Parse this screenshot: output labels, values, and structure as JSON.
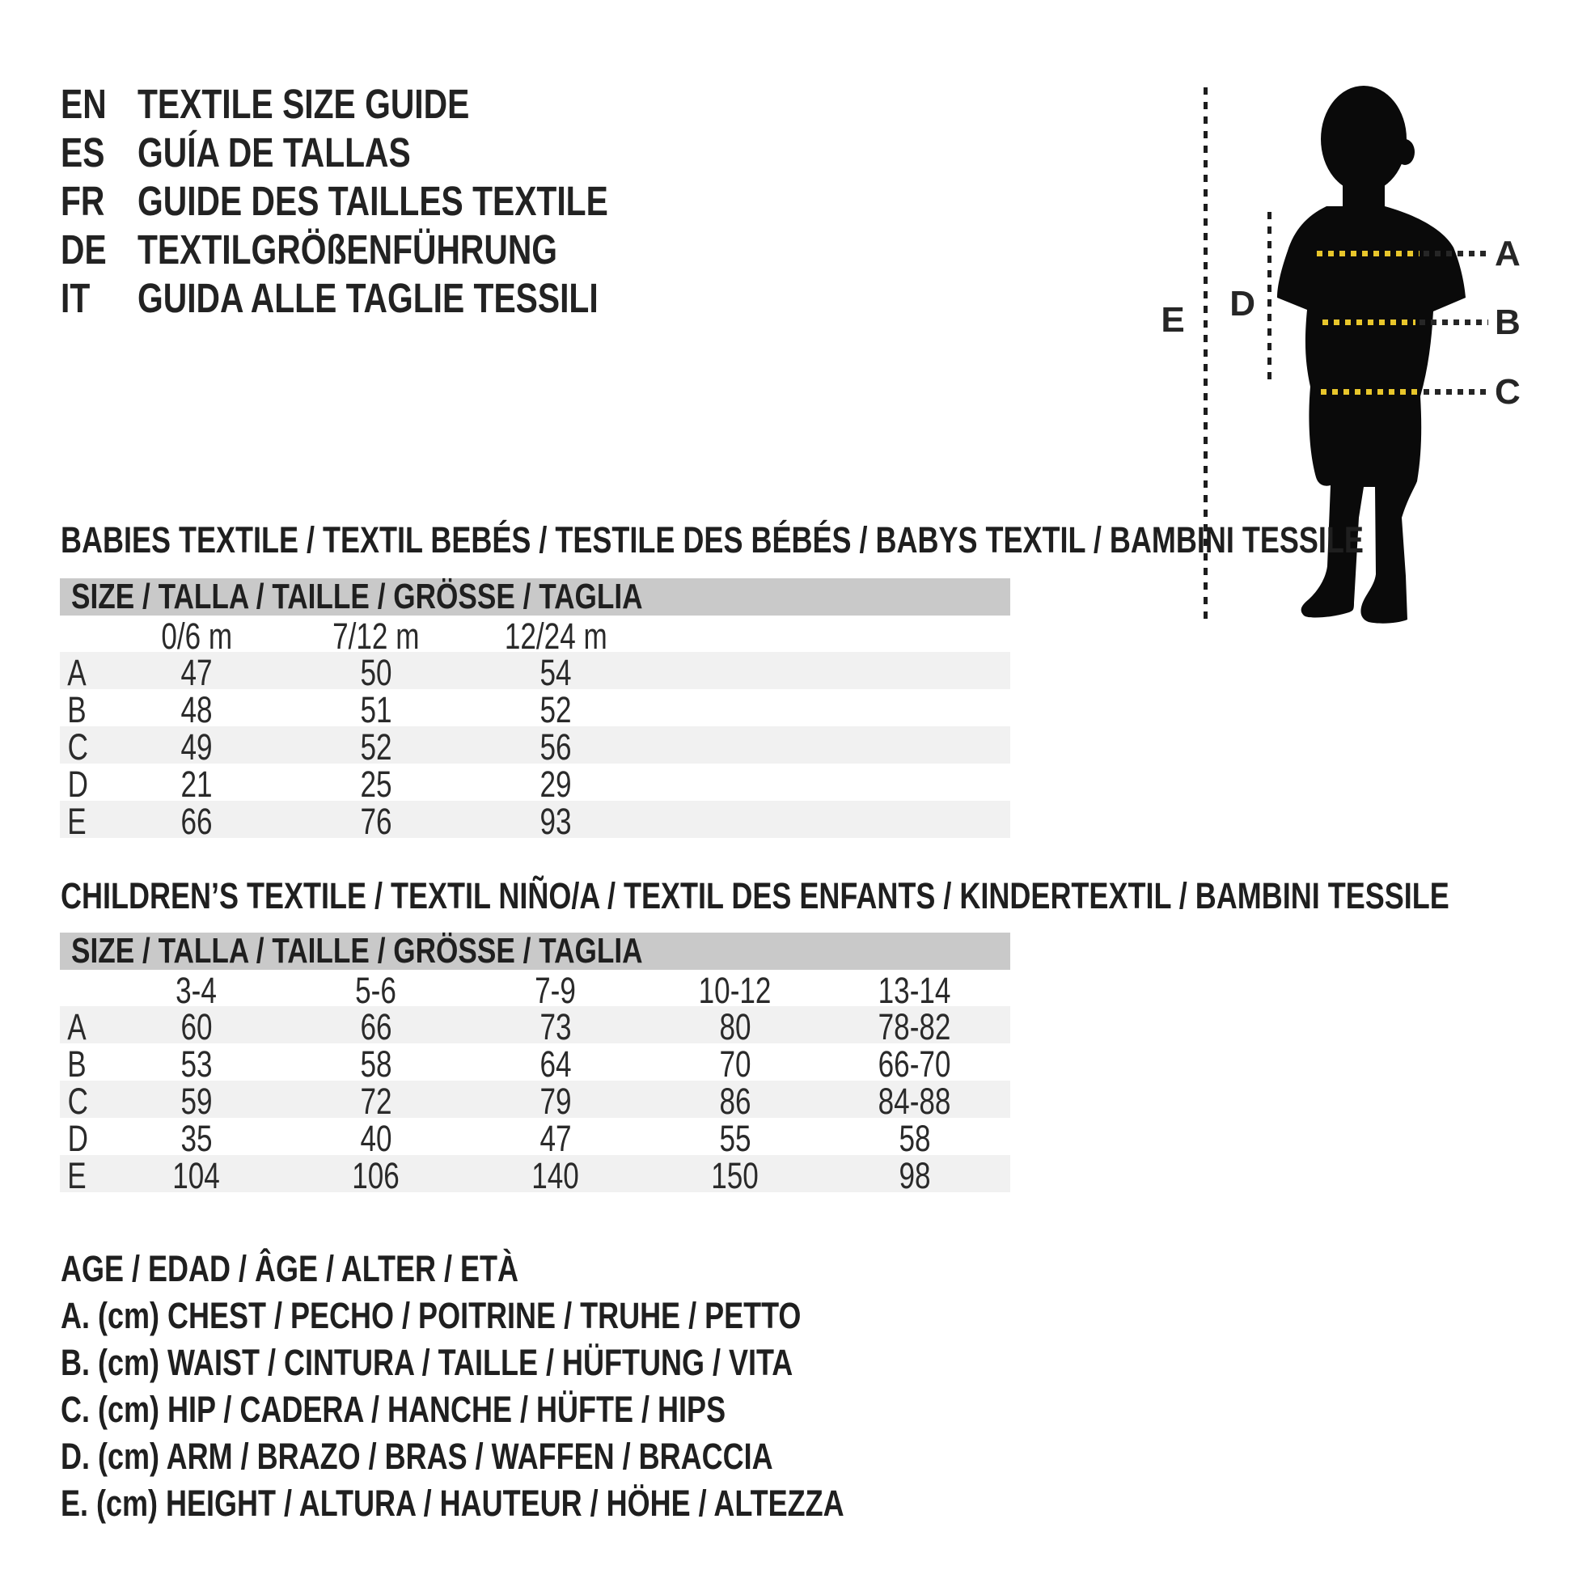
{
  "header": {
    "languages": [
      {
        "code": "EN",
        "title": "TEXTILE SIZE GUIDE"
      },
      {
        "code": "ES",
        "title": "GUÍA DE TALLAS"
      },
      {
        "code": "FR",
        "title": "GUIDE DES TAILLES TEXTILE"
      },
      {
        "code": "DE",
        "title": "TEXTILGRÖßENFÜHRUNG"
      },
      {
        "code": "IT",
        "title": "GUIDA ALLE TAGLIE TESSILI"
      }
    ]
  },
  "figure": {
    "silhouette": "child-silhouette",
    "measure_labels": {
      "chest": "A",
      "waist": "B",
      "hip": "C",
      "arm": "D",
      "height": "E"
    },
    "line_color_on_body": "#e8c62b",
    "line_color_off_body": "#262626"
  },
  "babies": {
    "heading": "BABIES TEXTILE / TEXTIL BEBÉS / TESTILE DES BÉBÉS / BABYS TEXTIL / BAMBINI TESSILE",
    "size_bar": "SIZE / TALLA / TAILLE / GRÖSSE / TAGLIA",
    "columns": [
      "0/6 m",
      "7/12 m",
      "12/24 m"
    ],
    "rows": [
      {
        "label": "A",
        "values": [
          "47",
          "50",
          "54"
        ]
      },
      {
        "label": "B",
        "values": [
          "48",
          "51",
          "52"
        ]
      },
      {
        "label": "C",
        "values": [
          "49",
          "52",
          "56"
        ]
      },
      {
        "label": "D",
        "values": [
          "21",
          "25",
          "29"
        ]
      },
      {
        "label": "E",
        "values": [
          "66",
          "76",
          "93"
        ]
      }
    ]
  },
  "children": {
    "heading": "CHILDREN’S TEXTILE / TEXTIL NIÑO/A / TEXTIL DES ENFANTS / KINDERTEXTIL / BAMBINI TESSILE",
    "size_bar": "SIZE / TALLA / TAILLE / GRÖSSE / TAGLIA",
    "columns": [
      "3-4",
      "5-6",
      "7-9",
      "10-12",
      "13-14"
    ],
    "rows": [
      {
        "label": "A",
        "values": [
          "60",
          "66",
          "73",
          "80",
          "78-82"
        ]
      },
      {
        "label": "B",
        "values": [
          "53",
          "58",
          "64",
          "70",
          "66-70"
        ]
      },
      {
        "label": "C",
        "values": [
          "59",
          "72",
          "79",
          "86",
          "84-88"
        ]
      },
      {
        "label": "D",
        "values": [
          "35",
          "40",
          "47",
          "55",
          "58"
        ]
      },
      {
        "label": "E",
        "values": [
          "104",
          "106",
          "140",
          "150",
          "98"
        ]
      }
    ]
  },
  "legend": {
    "lines": [
      "AGE / EDAD / ÂGE / ALTER / ETÀ",
      "A. (cm) CHEST / PECHO / POITRINE / TRUHE / PETTO",
      "B. (cm) WAIST / CINTURA / TAILLE / HÜFTUNG / VITA",
      "C. (cm) HIP / CADERA / HANCHE / HÜFTE / HIPS",
      "D. (cm) ARM / BRAZO / BRAS / WAFFEN / BRACCIA",
      "E. (cm) HEIGHT / ALTURA / HAUTEUR / HÖHE / ALTEZZA"
    ]
  },
  "colors": {
    "bar_gray": "#c9c9c9",
    "stripe_gray": "#f1f1f1",
    "accent_yellow": "#e8c62b",
    "text": "#222222"
  }
}
